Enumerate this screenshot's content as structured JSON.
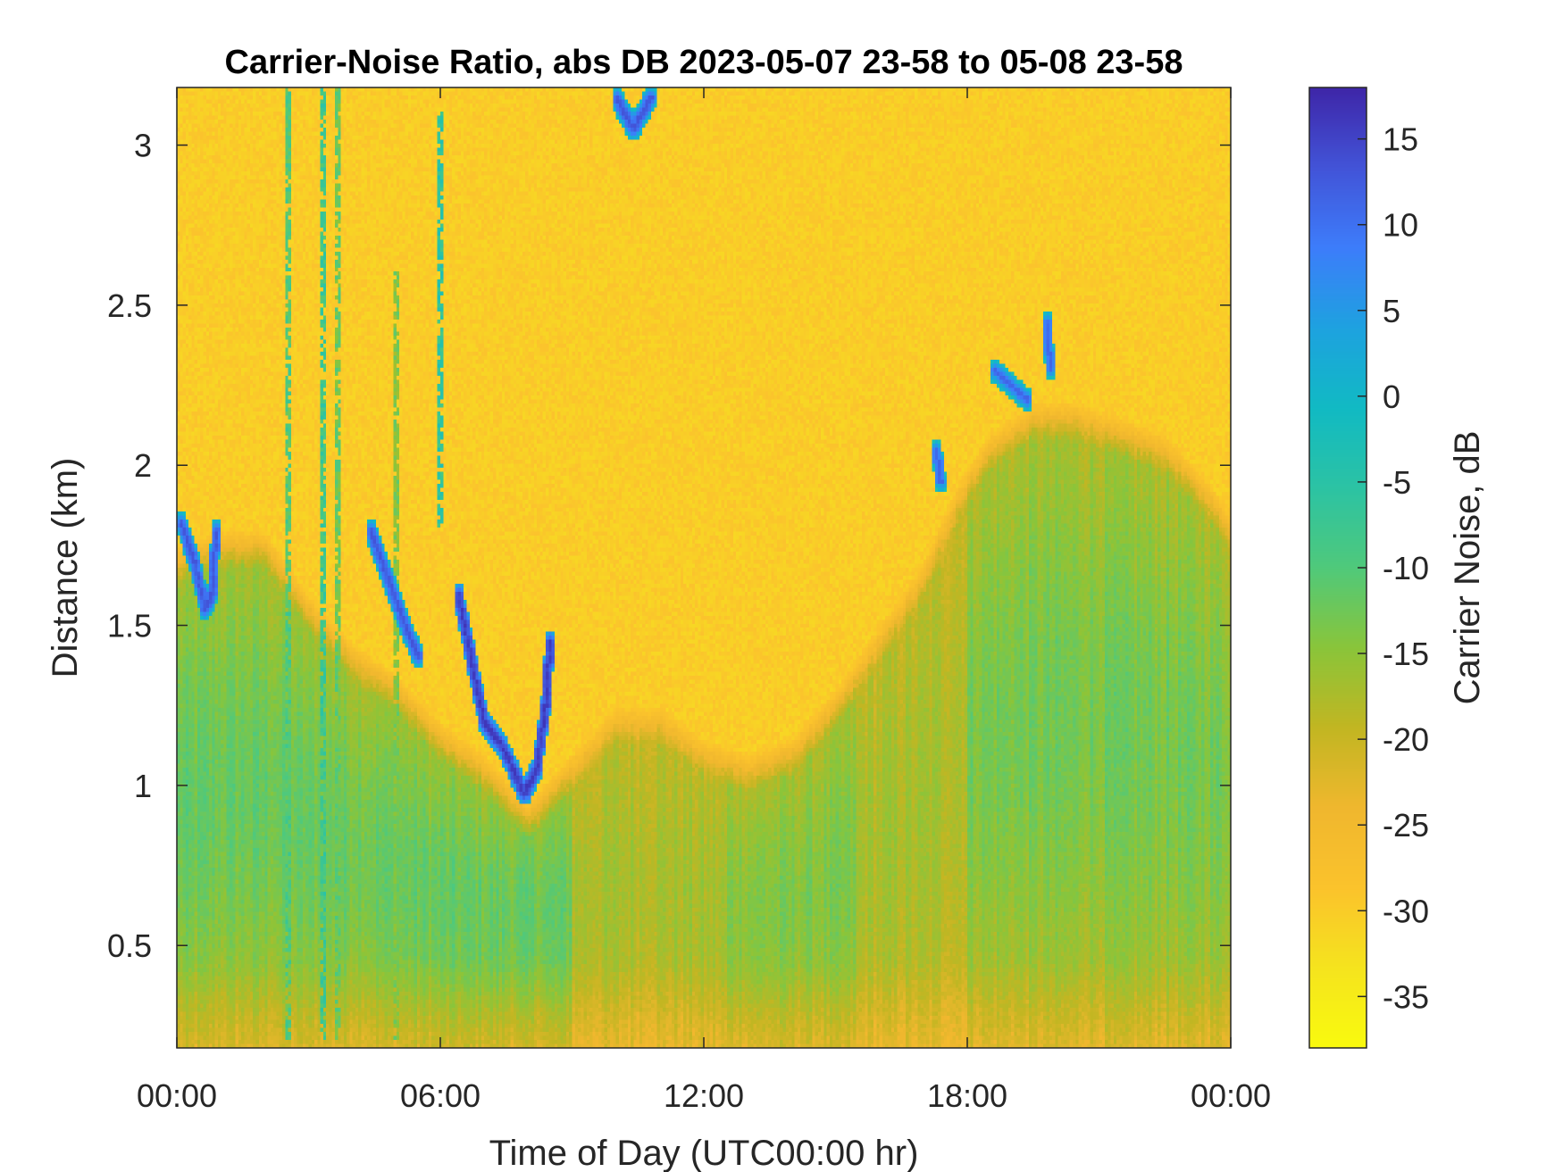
{
  "chart_data": {
    "type": "heatmap",
    "title": "Carrier-Noise Ratio, abs DB 2023-05-07 23-58 to 05-08 23-58",
    "xlabel": "Time of Day (UTC00:00 hr)",
    "ylabel": "Distance (km)",
    "colorbar_label": "Carrier Noise, dB",
    "xlim": [
      0,
      24
    ],
    "ylim": [
      0.18,
      3.18
    ],
    "clim": [
      -38,
      18
    ],
    "x_ticks": [
      {
        "value": 0,
        "label": "00:00"
      },
      {
        "value": 6,
        "label": "06:00"
      },
      {
        "value": 12,
        "label": "12:00"
      },
      {
        "value": 18,
        "label": "18:00"
      },
      {
        "value": 24,
        "label": "00:00"
      }
    ],
    "y_ticks": [
      {
        "value": 0.5,
        "label": "0.5"
      },
      {
        "value": 1,
        "label": "1"
      },
      {
        "value": 1.5,
        "label": "1.5"
      },
      {
        "value": 2,
        "label": "2"
      },
      {
        "value": 2.5,
        "label": "2.5"
      },
      {
        "value": 3,
        "label": "3"
      }
    ],
    "colorbar_ticks": [
      {
        "value": 15,
        "label": "15"
      },
      {
        "value": 10,
        "label": "10"
      },
      {
        "value": 5,
        "label": "5"
      },
      {
        "value": 0,
        "label": "0"
      },
      {
        "value": -5,
        "label": "-5"
      },
      {
        "value": -10,
        "label": "-10"
      },
      {
        "value": -15,
        "label": "-15"
      },
      {
        "value": -20,
        "label": "-20"
      },
      {
        "value": -25,
        "label": "-25"
      },
      {
        "value": -30,
        "label": "-30"
      },
      {
        "value": -35,
        "label": "-35"
      }
    ],
    "colormap": "parula",
    "colormap_stops": [
      "#3e26a8",
      "#4254d8",
      "#3d7dfb",
      "#1ea2e0",
      "#11bac4",
      "#2cc3a4",
      "#50c97b",
      "#8ac53a",
      "#c2b622",
      "#f0b72e",
      "#fbc32c",
      "#f5e41e",
      "#f9fb0e"
    ],
    "background_value_db": -30,
    "boundary_layer_top_km": [
      {
        "t": 0,
        "km": 1.75
      },
      {
        "t": 1,
        "km": 1.8
      },
      {
        "t": 2,
        "km": 1.8
      },
      {
        "t": 3,
        "km": 1.6
      },
      {
        "t": 4,
        "km": 1.45
      },
      {
        "t": 5,
        "km": 1.35
      },
      {
        "t": 6,
        "km": 1.2
      },
      {
        "t": 7,
        "km": 1.1
      },
      {
        "t": 8,
        "km": 0.95
      },
      {
        "t": 9,
        "km": 1.1
      },
      {
        "t": 10,
        "km": 1.25
      },
      {
        "t": 11,
        "km": 1.25
      },
      {
        "t": 12,
        "km": 1.15
      },
      {
        "t": 13,
        "km": 1.1
      },
      {
        "t": 14,
        "km": 1.15
      },
      {
        "t": 15,
        "km": 1.3
      },
      {
        "t": 16,
        "km": 1.5
      },
      {
        "t": 17,
        "km": 1.7
      },
      {
        "t": 17.8,
        "km": 1.95
      },
      {
        "t": 18.5,
        "km": 2.1
      },
      {
        "t": 19.5,
        "km": 2.2
      },
      {
        "t": 20.5,
        "km": 2.2
      },
      {
        "t": 21.5,
        "km": 2.15
      },
      {
        "t": 22.5,
        "km": 2.1
      },
      {
        "t": 23.5,
        "km": 1.95
      },
      {
        "t": 24,
        "km": 1.85
      }
    ],
    "strong_return_features": [
      {
        "points": [
          [
            0.1,
            1.82
          ],
          [
            0.4,
            1.7
          ],
          [
            0.65,
            1.55
          ],
          [
            0.8,
            1.6
          ],
          [
            0.9,
            1.8
          ]
        ],
        "db": 12
      },
      {
        "points": [
          [
            4.4,
            1.8
          ],
          [
            4.8,
            1.65
          ],
          [
            5.2,
            1.5
          ],
          [
            5.5,
            1.4
          ]
        ],
        "db": 12
      },
      {
        "points": [
          [
            6.4,
            1.6
          ],
          [
            6.7,
            1.4
          ],
          [
            7.0,
            1.2
          ],
          [
            7.5,
            1.1
          ],
          [
            7.9,
            0.97
          ],
          [
            8.2,
            1.05
          ],
          [
            8.4,
            1.25
          ],
          [
            8.5,
            1.45
          ]
        ],
        "db": 15
      },
      {
        "points": [
          [
            10.0,
            3.15
          ],
          [
            10.4,
            3.05
          ],
          [
            10.8,
            3.15
          ]
        ],
        "db": 12
      },
      {
        "points": [
          [
            18.6,
            2.3
          ],
          [
            19.0,
            2.25
          ],
          [
            19.4,
            2.2
          ]
        ],
        "db": 10
      },
      {
        "points": [
          [
            19.8,
            2.45
          ],
          [
            19.9,
            2.3
          ]
        ],
        "db": 10
      },
      {
        "points": [
          [
            17.3,
            2.05
          ],
          [
            17.4,
            1.95
          ]
        ],
        "db": 10
      }
    ],
    "vertical_streaks": [
      {
        "t": 2.45,
        "from_km": 0.2,
        "to_km": 3.18,
        "db": -10
      },
      {
        "t": 3.3,
        "from_km": 0.2,
        "to_km": 3.18,
        "db": -8
      },
      {
        "t": 3.6,
        "from_km": 0.2,
        "to_km": 3.18,
        "db": -12
      },
      {
        "t": 4.9,
        "from_km": 0.2,
        "to_km": 2.6,
        "db": -14
      },
      {
        "t": 5.9,
        "from_km": 1.8,
        "to_km": 3.1,
        "db": -6
      }
    ],
    "grid": false
  }
}
